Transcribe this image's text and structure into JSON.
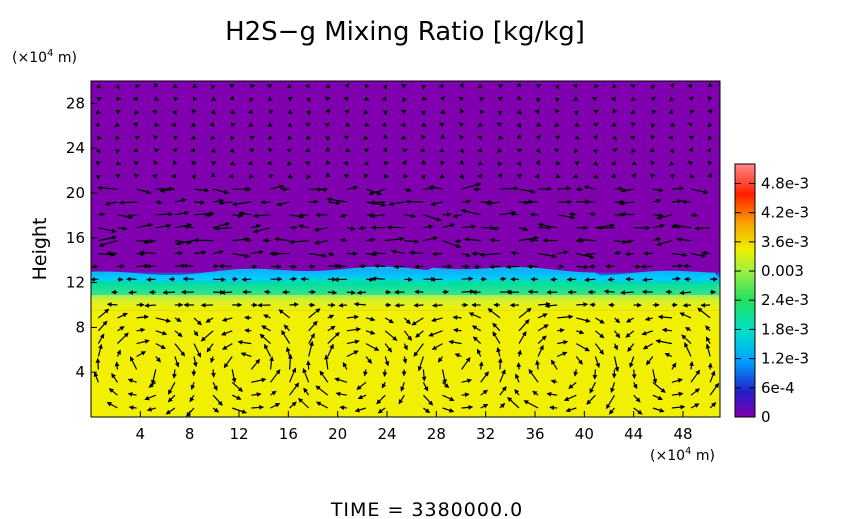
{
  "chart_data": {
    "type": "heatmap",
    "title": "H2S−g Mixing Ratio [kg/kg]",
    "ylabel": "Height",
    "x_unit": "(×10",
    "x_unit_exp": "4",
    "x_unit_tail": " m)",
    "y_unit": "(×10",
    "y_unit_exp": "4",
    "y_unit_tail": " m)",
    "x_ticks": [
      "4",
      "8",
      "12",
      "16",
      "20",
      "24",
      "28",
      "32",
      "36",
      "40",
      "44",
      "48"
    ],
    "y_ticks": [
      "4",
      "8",
      "12",
      "16",
      "20",
      "24",
      "28"
    ],
    "x_range": [
      0,
      51
    ],
    "y_range": [
      0,
      30
    ],
    "colorbar_labels": [
      "4.8e-3",
      "4.2e-3",
      "3.6e-3",
      "0.003",
      "2.4e-3",
      "1.8e-3",
      "1.2e-3",
      "6e-4",
      "0"
    ],
    "colorbar_values": [
      0.0048,
      0.0042,
      0.0036,
      0.003,
      0.0024,
      0.0018,
      0.0012,
      0.0006,
      0
    ],
    "colorbar_range": [
      0,
      0.0052
    ],
    "field": {
      "lower_layer_value": 0.0033,
      "upper_layer_value": 0,
      "interface_height": 12.5,
      "transition_band": [
        9.5,
        13.0
      ]
    },
    "has_wind_vectors": true,
    "colormap": [
      "#8000b0",
      "#1818d0",
      "#00c8ff",
      "#00e080",
      "#c8f040",
      "#f0f000",
      "#f8a000",
      "#ff2000",
      "#ff8080"
    ],
    "time_label": "TIME = 3380000.0"
  }
}
